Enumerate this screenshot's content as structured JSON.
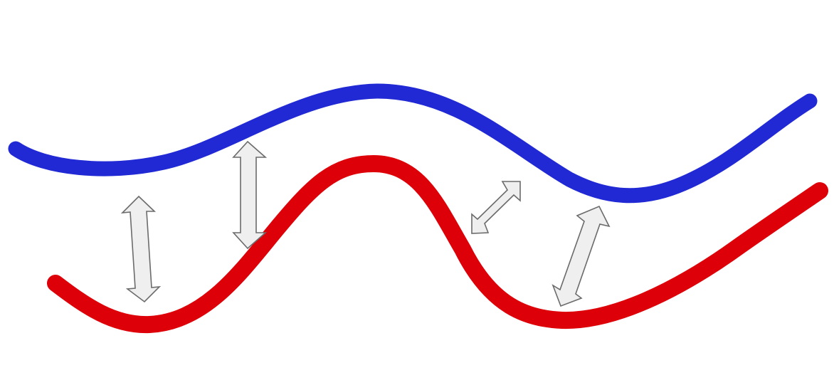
{
  "diagram": {
    "curves": [
      {
        "name": "upper-curve",
        "color": "#2129d4"
      },
      {
        "name": "lower-curve",
        "color": "#dd0009"
      }
    ],
    "arrows": {
      "count": 4,
      "fill": "#efefef",
      "stroke": "#6b6b6b",
      "style": "double-headed"
    }
  }
}
